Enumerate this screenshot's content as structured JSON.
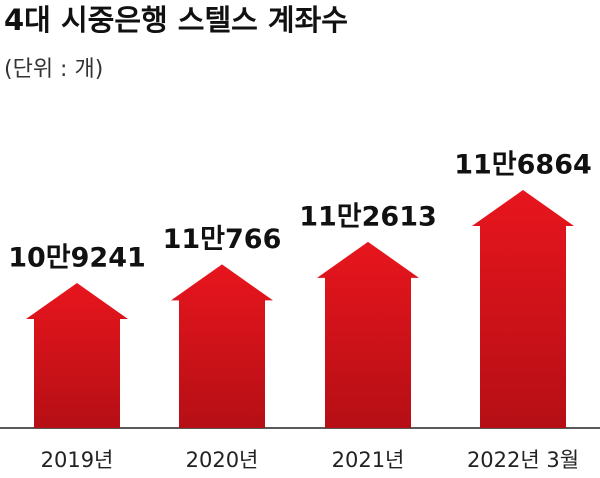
{
  "chart_data": {
    "type": "arrow-bar",
    "title": "4대 시중은행 스텔스 계좌수",
    "subtitle": "(단위 : 개)",
    "categories": [
      "2019년",
      "2020년",
      "2021년",
      "2022년 3월"
    ],
    "values": [
      109241,
      110766,
      112613,
      116864
    ],
    "value_labels": [
      "10만9241",
      "11만766",
      "11만2613",
      "11만6864"
    ],
    "color": "#e3141c"
  }
}
